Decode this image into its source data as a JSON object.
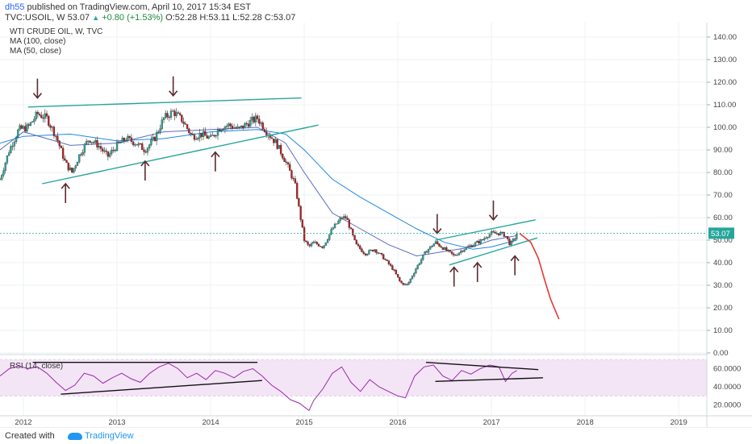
{
  "header": {
    "author": "dh55",
    "published_text": "published on TradingView.com, April 10, 2017 15:34 EST",
    "symbol": "TVC:USOIL, W",
    "last": "53.07",
    "change": "+0.80 (+1.53%)",
    "open": "O:52.28",
    "high": "H:53.11",
    "low": "L:52.28",
    "close": "C:53.07"
  },
  "legend": {
    "title": "WTI CRUDE OIL, W, TVC",
    "ma100": "MA (100, close)",
    "ma50": "MA (50, close)",
    "rsi": "RSI (14, close)"
  },
  "footer": {
    "created_with": "Created with",
    "brand": "TradingView"
  },
  "colors": {
    "up": "#26a69a",
    "down": "#b71c1c",
    "ma100": "#1e88e5",
    "ma50": "#5c6bc0",
    "trend": "#26a69a",
    "arrow": "#5d2a2e",
    "projection": "#e53935",
    "rsi": "#9c27b0",
    "rsi_band": "#f3e5f5",
    "price_tag": "#26a69a"
  },
  "chart_data": [
    {
      "type": "candlestick",
      "title": "WTI CRUDE OIL, W, TVC",
      "x_ticks": [
        "2012",
        "2013",
        "2014",
        "2015",
        "2016",
        "2017",
        "2018",
        "2019"
      ],
      "y_ticks": [
        "0.00",
        "10.00",
        "20.00",
        "30.00",
        "40.00",
        "50.00",
        "60.00",
        "70.00",
        "80.00",
        "90.00",
        "100.00",
        "110.00",
        "120.00",
        "130.00",
        "140.00"
      ],
      "ylim": [
        0,
        145
      ],
      "xlim": [
        2011.75,
        2019.3
      ],
      "last_price_label": "53.07",
      "last_price": 53.07,
      "price_path": [
        [
          2011.75,
          77
        ],
        [
          2011.85,
          90
        ],
        [
          2011.95,
          99
        ],
        [
          2012.05,
          100
        ],
        [
          2012.15,
          106
        ],
        [
          2012.25,
          104
        ],
        [
          2012.35,
          96
        ],
        [
          2012.45,
          84
        ],
        [
          2012.52,
          80
        ],
        [
          2012.6,
          88
        ],
        [
          2012.7,
          95
        ],
        [
          2012.8,
          92
        ],
        [
          2012.9,
          87
        ],
        [
          2013.0,
          92
        ],
        [
          2013.1,
          95
        ],
        [
          2013.2,
          93
        ],
        [
          2013.3,
          90
        ],
        [
          2013.4,
          95
        ],
        [
          2013.5,
          104
        ],
        [
          2013.6,
          107
        ],
        [
          2013.7,
          103
        ],
        [
          2013.8,
          96
        ],
        [
          2013.9,
          97
        ],
        [
          2014.0,
          95
        ],
        [
          2014.1,
          100
        ],
        [
          2014.2,
          101
        ],
        [
          2014.3,
          99
        ],
        [
          2014.4,
          102
        ],
        [
          2014.5,
          104
        ],
        [
          2014.6,
          98
        ],
        [
          2014.7,
          93
        ],
        [
          2014.8,
          85
        ],
        [
          2014.9,
          75
        ],
        [
          2014.96,
          60
        ],
        [
          2015.0,
          50
        ],
        [
          2015.05,
          47
        ],
        [
          2015.1,
          49
        ],
        [
          2015.2,
          47
        ],
        [
          2015.3,
          55
        ],
        [
          2015.4,
          60
        ],
        [
          2015.45,
          60
        ],
        [
          2015.55,
          48
        ],
        [
          2015.65,
          44
        ],
        [
          2015.75,
          46
        ],
        [
          2015.85,
          42
        ],
        [
          2015.95,
          37
        ],
        [
          2016.03,
          31
        ],
        [
          2016.1,
          30
        ],
        [
          2016.2,
          38
        ],
        [
          2016.3,
          45
        ],
        [
          2016.4,
          49
        ],
        [
          2016.5,
          46
        ],
        [
          2016.6,
          43
        ],
        [
          2016.7,
          46
        ],
        [
          2016.8,
          48
        ],
        [
          2016.9,
          50
        ],
        [
          2016.95,
          52
        ],
        [
          2017.0,
          53
        ],
        [
          2017.1,
          53
        ],
        [
          2017.15,
          52
        ],
        [
          2017.2,
          48
        ],
        [
          2017.25,
          51
        ],
        [
          2017.27,
          53
        ]
      ],
      "ma100_path": [
        [
          2011.75,
          93
        ],
        [
          2012.0,
          96
        ],
        [
          2012.5,
          97
        ],
        [
          2013.0,
          94
        ],
        [
          2013.5,
          95
        ],
        [
          2014.0,
          98
        ],
        [
          2014.5,
          99
        ],
        [
          2014.8,
          97
        ],
        [
          2015.0,
          90
        ],
        [
          2015.3,
          77
        ],
        [
          2015.6,
          69
        ],
        [
          2015.9,
          62
        ],
        [
          2016.2,
          55
        ],
        [
          2016.5,
          49
        ],
        [
          2016.8,
          46
        ],
        [
          2017.0,
          47
        ],
        [
          2017.27,
          50
        ]
      ],
      "ma50_path": [
        [
          2011.75,
          90
        ],
        [
          2012.0,
          98
        ],
        [
          2012.5,
          92
        ],
        [
          2013.0,
          93
        ],
        [
          2013.5,
          98
        ],
        [
          2014.0,
          99
        ],
        [
          2014.5,
          100
        ],
        [
          2014.8,
          93
        ],
        [
          2015.0,
          80
        ],
        [
          2015.3,
          62
        ],
        [
          2015.6,
          55
        ],
        [
          2015.9,
          48
        ],
        [
          2016.2,
          43
        ],
        [
          2016.5,
          45
        ],
        [
          2016.8,
          47
        ],
        [
          2017.0,
          50
        ],
        [
          2017.27,
          52
        ]
      ],
      "trendlines": [
        [
          [
            2012.05,
            109
          ],
          [
            2014.97,
            113
          ]
        ],
        [
          [
            2012.2,
            75
          ],
          [
            2015.15,
            101
          ]
        ],
        [
          [
            2016.4,
            50
          ],
          [
            2017.47,
            59
          ]
        ],
        [
          [
            2016.55,
            39
          ],
          [
            2017.49,
            51
          ]
        ]
      ],
      "projection_path": [
        [
          2017.3,
          53
        ],
        [
          2017.42,
          49
        ],
        [
          2017.5,
          42
        ],
        [
          2017.57,
          32
        ],
        [
          2017.63,
          24
        ],
        [
          2017.68,
          19
        ],
        [
          2017.7,
          17
        ],
        [
          2017.72,
          15
        ]
      ],
      "down_arrows": [
        [
          2012.15,
          113
        ],
        [
          2013.6,
          114
        ],
        [
          2016.42,
          53
        ],
        [
          2017.02,
          59
        ]
      ],
      "up_arrows": [
        [
          2012.45,
          75
        ],
        [
          2013.3,
          85
        ],
        [
          2014.05,
          89
        ],
        [
          2016.6,
          38
        ],
        [
          2016.85,
          40
        ],
        [
          2017.25,
          43
        ]
      ]
    },
    {
      "type": "line",
      "title": "RSI (14, close)",
      "y_ticks": [
        "20.0000",
        "40.0000",
        "60.0000"
      ],
      "ylim": [
        10,
        72
      ],
      "band": [
        30,
        70
      ],
      "rsi_path": [
        [
          2011.75,
          52
        ],
        [
          2011.85,
          60
        ],
        [
          2011.95,
          63
        ],
        [
          2012.05,
          60
        ],
        [
          2012.15,
          62
        ],
        [
          2012.25,
          55
        ],
        [
          2012.35,
          45
        ],
        [
          2012.45,
          36
        ],
        [
          2012.55,
          42
        ],
        [
          2012.65,
          55
        ],
        [
          2012.75,
          52
        ],
        [
          2012.85,
          44
        ],
        [
          2012.95,
          50
        ],
        [
          2013.05,
          55
        ],
        [
          2013.15,
          49
        ],
        [
          2013.25,
          45
        ],
        [
          2013.35,
          55
        ],
        [
          2013.45,
          62
        ],
        [
          2013.55,
          66
        ],
        [
          2013.65,
          60
        ],
        [
          2013.75,
          50
        ],
        [
          2013.85,
          55
        ],
        [
          2013.95,
          48
        ],
        [
          2014.05,
          58
        ],
        [
          2014.15,
          55
        ],
        [
          2014.25,
          50
        ],
        [
          2014.35,
          57
        ],
        [
          2014.45,
          60
        ],
        [
          2014.55,
          52
        ],
        [
          2014.65,
          42
        ],
        [
          2014.75,
          35
        ],
        [
          2014.85,
          26
        ],
        [
          2014.95,
          22
        ],
        [
          2015.05,
          14
        ],
        [
          2015.1,
          25
        ],
        [
          2015.2,
          38
        ],
        [
          2015.3,
          55
        ],
        [
          2015.4,
          62
        ],
        [
          2015.5,
          45
        ],
        [
          2015.6,
          35
        ],
        [
          2015.7,
          48
        ],
        [
          2015.8,
          40
        ],
        [
          2015.9,
          35
        ],
        [
          2016.0,
          30
        ],
        [
          2016.08,
          28
        ],
        [
          2016.18,
          52
        ],
        [
          2016.28,
          62
        ],
        [
          2016.38,
          64
        ],
        [
          2016.48,
          52
        ],
        [
          2016.58,
          47
        ],
        [
          2016.68,
          58
        ],
        [
          2016.78,
          54
        ],
        [
          2016.88,
          60
        ],
        [
          2016.98,
          64
        ],
        [
          2017.08,
          62
        ],
        [
          2017.15,
          46
        ],
        [
          2017.22,
          55
        ],
        [
          2017.27,
          58
        ]
      ],
      "trendlines": [
        [
          [
            2012.1,
            67
          ],
          [
            2014.5,
            67
          ]
        ],
        [
          [
            2012.4,
            32
          ],
          [
            2014.55,
            47
          ]
        ],
        [
          [
            2016.3,
            67
          ],
          [
            2017.5,
            59
          ]
        ],
        [
          [
            2016.4,
            46
          ],
          [
            2017.55,
            50
          ]
        ]
      ]
    }
  ]
}
